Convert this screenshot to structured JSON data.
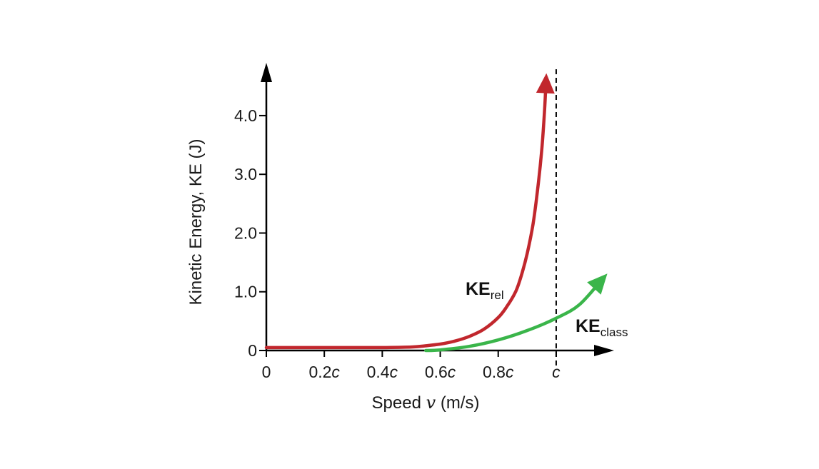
{
  "chart_data": {
    "type": "line",
    "title": "",
    "xlabel_parts": [
      "Speed ",
      "v",
      " (m/s)"
    ],
    "ylabel": "Kinetic Energy, KE (J)",
    "xticks": [
      {
        "num": "0",
        "unit": ""
      },
      {
        "num": "0.2",
        "unit": "c"
      },
      {
        "num": "0.4",
        "unit": "c"
      },
      {
        "num": "0.6",
        "unit": "c"
      },
      {
        "num": "0.8",
        "unit": "c"
      },
      {
        "num": "",
        "unit": "c"
      }
    ],
    "xtick_values": [
      0,
      0.2,
      0.4,
      0.6,
      0.8,
      1.0
    ],
    "yticks": [
      "0",
      "1.0",
      "2.0",
      "3.0",
      "4.0"
    ],
    "ytick_values": [
      0,
      1,
      2,
      3,
      4
    ],
    "xlim": [
      0,
      1.18
    ],
    "ylim": [
      0,
      4.85
    ],
    "grid": false,
    "vertical_line": {
      "x": 1.0,
      "style": "dashed",
      "label": "c"
    },
    "series": [
      {
        "name": "KE",
        "subscript": "rel",
        "color": "#c1272d",
        "x": [
          0,
          0.1,
          0.2,
          0.3,
          0.4,
          0.5,
          0.55,
          0.6,
          0.65,
          0.7,
          0.75,
          0.8,
          0.83,
          0.86,
          0.88,
          0.9,
          0.92,
          0.935,
          0.95,
          0.96,
          0.965
        ],
        "y": [
          0.05,
          0.05,
          0.05,
          0.05,
          0.05,
          0.06,
          0.08,
          0.11,
          0.16,
          0.24,
          0.36,
          0.56,
          0.75,
          1.0,
          1.28,
          1.65,
          2.15,
          2.7,
          3.4,
          4.1,
          4.6
        ]
      },
      {
        "name": "KE",
        "subscript": "class",
        "color": "#3ab54a",
        "x": [
          0.55,
          0.6,
          0.7,
          0.8,
          0.9,
          1.0,
          1.08,
          1.16
        ],
        "y": [
          0.0,
          0.01,
          0.07,
          0.18,
          0.34,
          0.55,
          0.78,
          1.22
        ]
      }
    ]
  }
}
